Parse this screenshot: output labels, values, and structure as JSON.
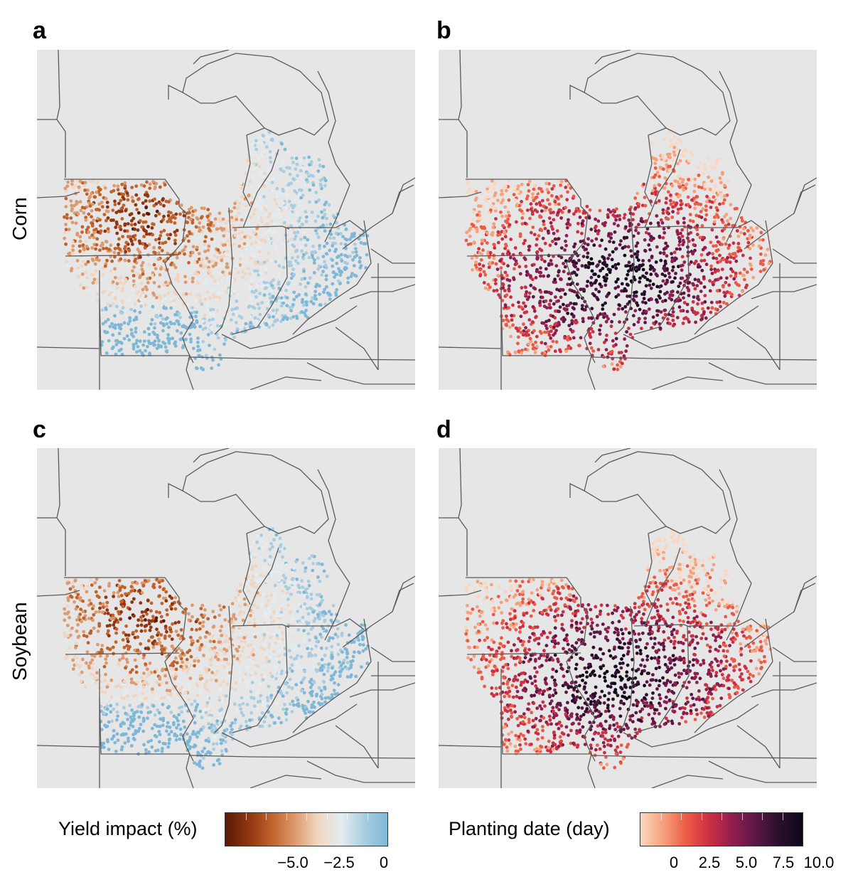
{
  "panels": [
    {
      "letter": "a",
      "variable": "yield",
      "crop": "corn"
    },
    {
      "letter": "b",
      "variable": "planting",
      "crop": "corn"
    },
    {
      "letter": "c",
      "variable": "yield",
      "crop": "soybean"
    },
    {
      "letter": "d",
      "variable": "planting",
      "crop": "soybean"
    }
  ],
  "row_labels": {
    "corn": "Corn",
    "soybean": "Soybean"
  },
  "legends": {
    "yield": {
      "title": "Yield impact (%)",
      "ticks": [
        "−5.0",
        "−2.5",
        "0"
      ],
      "colors": [
        "#5a1a06",
        "#8f3510",
        "#c0622b",
        "#dd9a6e",
        "#f0d6c2",
        "#e4ecef",
        "#a9cde0",
        "#7fb8d6"
      ]
    },
    "planting": {
      "title": "Planting date (day)",
      "ticks": [
        "0",
        "2.5",
        "5.0",
        "7.5",
        "10.0"
      ],
      "colors": [
        "#fbd7bf",
        "#f6a07c",
        "#ec5a45",
        "#cb2f44",
        "#8e1e4e",
        "#5a1746",
        "#2a0f2c",
        "#0d0718"
      ]
    }
  },
  "colors": {
    "land": "#e6e6e6",
    "border": "#5a5a5a"
  }
}
